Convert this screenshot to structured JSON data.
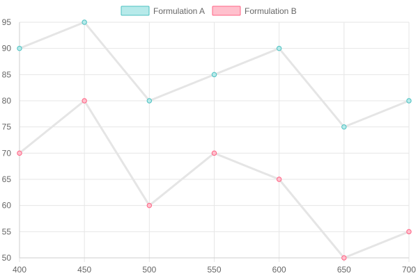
{
  "chart_data": {
    "type": "line",
    "x": [
      400,
      450,
      500,
      550,
      600,
      650,
      700
    ],
    "xlim": [
      400,
      700
    ],
    "ylim": [
      50,
      95
    ],
    "x_ticks": [
      400,
      450,
      500,
      550,
      600,
      650,
      700
    ],
    "y_ticks": [
      50,
      55,
      60,
      65,
      70,
      75,
      80,
      85,
      90,
      95
    ],
    "grid": true,
    "legend_position": "top",
    "series": [
      {
        "name": "Formulation A",
        "values": [
          90,
          95,
          80,
          85,
          90,
          75,
          80
        ],
        "color": "#4bc0c0",
        "fill": "#b7eaea"
      },
      {
        "name": "Formulation B",
        "values": [
          70,
          80,
          60,
          70,
          65,
          50,
          55
        ],
        "color": "#ff6384",
        "fill": "#ffc0cd"
      }
    ],
    "line_color": "#e5e5e5",
    "grid_color": "#e6e6e6",
    "text_color": "#666666"
  }
}
